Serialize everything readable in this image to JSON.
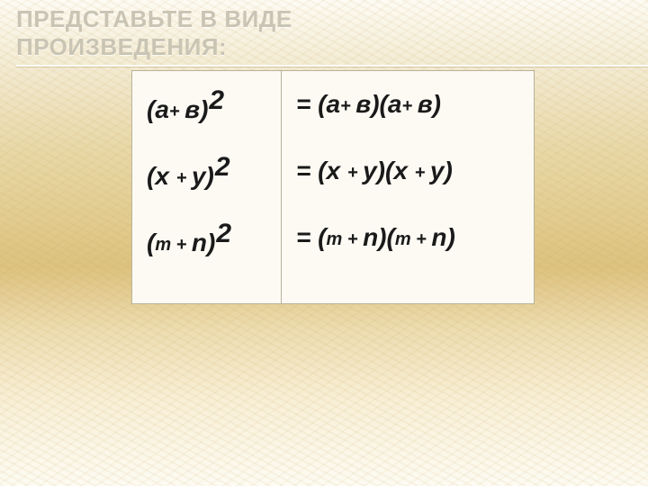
{
  "title": {
    "line1": "ПРЕДСТАВЬТЕ В ВИДЕ",
    "line2": "ПРОИЗВЕДЕНИЯ:"
  },
  "table": {
    "border_color": "#b9b29a",
    "bg_color": "#fcfaf3",
    "rows": [
      {
        "l_open": "(",
        "l_a": "а",
        "l_plus": "+ ",
        "l_b": "в",
        "l_close": ")",
        "r_eq": "= (",
        "r_a1": "а",
        "r_p1": "+ ",
        "r_b1": "в",
        "r_mid": ")(",
        "r_a2": "а",
        "r_p2": "+ ",
        "r_b2": "в",
        "r_close": ")"
      },
      {
        "l_open": "(",
        "l_a": "х ",
        "l_plus": "+ ",
        "l_b": "у",
        "l_close": ")",
        "r_eq": "= (",
        "r_a1": "х ",
        "r_p1": "+ ",
        "r_b1": "у",
        "r_mid": ")(",
        "r_a2": "х ",
        "r_p2": "+ ",
        "r_b2": "у",
        "r_close": ")"
      },
      {
        "l_open": "(",
        "l_a": "m ",
        "l_plus": "+ ",
        "l_b": "n",
        "l_close": ")",
        "r_eq": "= (",
        "r_a1": "m ",
        "r_p1": "+ ",
        "r_b1": "n",
        "r_mid": ")(",
        "r_a2": "m ",
        "r_p2": "+ ",
        "r_b2": "n",
        "r_close": ")"
      }
    ],
    "squared": "2"
  },
  "style": {
    "title_color": "#c9c4b3",
    "title_fontsize": 26,
    "expr_big_fontsize": 28,
    "expr_small_fontsize": 20,
    "sup_fontsize": 30,
    "text_color": "#1a1a1a"
  }
}
